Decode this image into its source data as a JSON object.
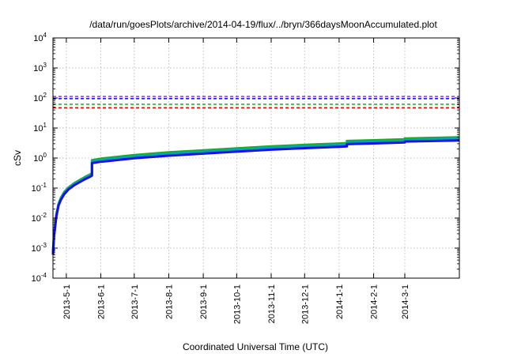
{
  "chart_data": {
    "type": "line",
    "title": "/data/run/goesPlots/archive/2014-04-19/flux/../bryn/366daysMoonAccumulated.plot",
    "xlabel": "Coordinated Universal Time (UTC)",
    "ylabel": "cSv",
    "y_scale": "log",
    "ylim": [
      0.0001,
      10000
    ],
    "y_ticks": [
      {
        "base": "10",
        "exp": "-4",
        "value": 0.0001
      },
      {
        "base": "10",
        "exp": "-3",
        "value": 0.001
      },
      {
        "base": "10",
        "exp": "-2",
        "value": 0.01
      },
      {
        "base": "10",
        "exp": "-1",
        "value": 0.1
      },
      {
        "base": "10",
        "exp": "0",
        "value": 1
      },
      {
        "base": "10",
        "exp": "1",
        "value": 10
      },
      {
        "base": "10",
        "exp": "2",
        "value": 100
      },
      {
        "base": "10",
        "exp": "3",
        "value": 1000
      },
      {
        "base": "10",
        "exp": "4",
        "value": 10000
      }
    ],
    "xlim": [
      "2013-04-19",
      "2014-04-19"
    ],
    "x_ticks": [
      "2013-5-1",
      "2013-6-1",
      "2013-7-1",
      "2013-8-1",
      "2013-9-1",
      "2013-10-1",
      "2013-11-1",
      "2013-12-1",
      "2014-1-1",
      "2014-2-1",
      "2014-3-1"
    ],
    "x_tick_dates": [
      "2013-05-01",
      "2013-06-01",
      "2013-07-01",
      "2013-08-01",
      "2013-09-01",
      "2013-10-01",
      "2013-11-01",
      "2013-12-01",
      "2014-01-01",
      "2014-02-01",
      "2014-03-01"
    ],
    "grid": true,
    "reference_lines": [
      {
        "value": 112,
        "color": "#9a32cd",
        "style": "dashed"
      },
      {
        "value": 95,
        "color": "#1a1aff",
        "style": "dashed"
      },
      {
        "value": 62,
        "color": "#22bb22",
        "style": "dashed"
      },
      {
        "value": 47,
        "color": "#e00000",
        "style": "dashed"
      }
    ],
    "series": [
      {
        "color": "#22aa22",
        "points": [
          [
            "2013-04-19",
            0.0008
          ],
          [
            "2013-04-20",
            0.003
          ],
          [
            "2013-04-22",
            0.013
          ],
          [
            "2013-04-24",
            0.03
          ],
          [
            "2013-04-26",
            0.047
          ],
          [
            "2013-04-29",
            0.073
          ],
          [
            "2013-05-03",
            0.105
          ],
          [
            "2013-05-08",
            0.145
          ],
          [
            "2013-05-13",
            0.185
          ],
          [
            "2013-05-18",
            0.235
          ],
          [
            "2013-05-23",
            0.29
          ],
          [
            "2013-05-24",
            0.31
          ],
          [
            "2013-05-24",
            0.85
          ],
          [
            "2013-06-01",
            0.95
          ],
          [
            "2013-07-01",
            1.25
          ],
          [
            "2013-08-01",
            1.55
          ],
          [
            "2013-09-01",
            1.8
          ],
          [
            "2013-10-01",
            2.1
          ],
          [
            "2013-11-01",
            2.45
          ],
          [
            "2013-12-01",
            2.75
          ],
          [
            "2014-01-01",
            3.05
          ],
          [
            "2014-01-08",
            3.15
          ],
          [
            "2014-01-08",
            3.7
          ],
          [
            "2014-02-01",
            3.9
          ],
          [
            "2014-03-01",
            4.2
          ],
          [
            "2014-03-01",
            4.5
          ],
          [
            "2014-04-19",
            4.9
          ]
        ]
      },
      {
        "color": "#00aaaa",
        "points": [
          [
            "2013-04-19",
            0.0007
          ],
          [
            "2013-04-20",
            0.0028
          ],
          [
            "2013-04-22",
            0.012
          ],
          [
            "2013-04-24",
            0.028
          ],
          [
            "2013-04-26",
            0.044
          ],
          [
            "2013-04-29",
            0.068
          ],
          [
            "2013-05-03",
            0.098
          ],
          [
            "2013-05-08",
            0.135
          ],
          [
            "2013-05-13",
            0.172
          ],
          [
            "2013-05-18",
            0.218
          ],
          [
            "2013-05-23",
            0.27
          ],
          [
            "2013-05-24",
            0.285
          ],
          [
            "2013-05-24",
            0.78
          ],
          [
            "2013-06-01",
            0.86
          ],
          [
            "2013-07-01",
            1.13
          ],
          [
            "2013-08-01",
            1.4
          ],
          [
            "2013-09-01",
            1.63
          ],
          [
            "2013-10-01",
            1.9
          ],
          [
            "2013-11-01",
            2.22
          ],
          [
            "2013-12-01",
            2.48
          ],
          [
            "2014-01-01",
            2.75
          ],
          [
            "2014-01-08",
            2.85
          ],
          [
            "2014-01-08",
            3.35
          ],
          [
            "2014-02-01",
            3.53
          ],
          [
            "2014-03-01",
            3.8
          ],
          [
            "2014-03-01",
            4.08
          ],
          [
            "2014-04-19",
            4.45
          ]
        ]
      },
      {
        "color": "#1010ee",
        "points": [
          [
            "2013-04-19",
            0.0006
          ],
          [
            "2013-04-20",
            0.0025
          ],
          [
            "2013-04-22",
            0.011
          ],
          [
            "2013-04-24",
            0.026
          ],
          [
            "2013-04-26",
            0.04
          ],
          [
            "2013-04-29",
            0.062
          ],
          [
            "2013-05-03",
            0.09
          ],
          [
            "2013-05-08",
            0.124
          ],
          [
            "2013-05-13",
            0.158
          ],
          [
            "2013-05-18",
            0.2
          ],
          [
            "2013-05-23",
            0.245
          ],
          [
            "2013-05-24",
            0.26
          ],
          [
            "2013-05-24",
            0.68
          ],
          [
            "2013-06-01",
            0.75
          ],
          [
            "2013-07-01",
            0.98
          ],
          [
            "2013-08-01",
            1.2
          ],
          [
            "2013-09-01",
            1.4
          ],
          [
            "2013-10-01",
            1.63
          ],
          [
            "2013-11-01",
            1.9
          ],
          [
            "2013-12-01",
            2.13
          ],
          [
            "2014-01-01",
            2.38
          ],
          [
            "2014-01-08",
            2.45
          ],
          [
            "2014-01-08",
            2.9
          ],
          [
            "2014-02-01",
            3.06
          ],
          [
            "2014-03-01",
            3.3
          ],
          [
            "2014-03-01",
            3.55
          ],
          [
            "2014-04-19",
            3.85
          ]
        ]
      }
    ]
  }
}
